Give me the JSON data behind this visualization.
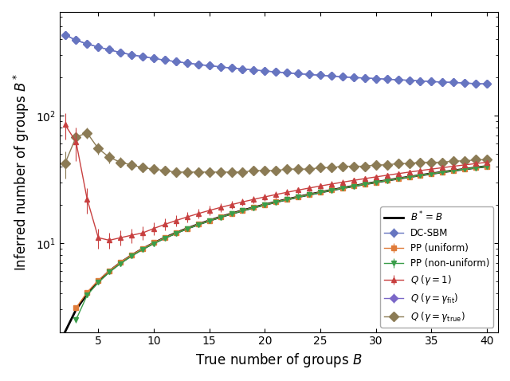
{
  "B_values": [
    2,
    3,
    4,
    5,
    6,
    7,
    8,
    9,
    10,
    11,
    12,
    13,
    14,
    15,
    16,
    17,
    18,
    19,
    20,
    21,
    22,
    23,
    24,
    25,
    26,
    27,
    28,
    29,
    30,
    31,
    32,
    33,
    34,
    35,
    36,
    37,
    38,
    39,
    40
  ],
  "dcsbm_y": [
    430,
    390,
    365,
    345,
    328,
    312,
    300,
    290,
    281,
    272,
    265,
    258,
    252,
    246,
    241,
    236,
    232,
    228,
    224,
    220,
    216,
    213,
    210,
    207,
    204,
    201,
    199,
    197,
    195,
    193,
    191,
    189,
    187,
    185,
    183,
    182,
    180,
    178,
    177
  ],
  "dcsbm_err": [
    12,
    11,
    10,
    9,
    8,
    8,
    7,
    7,
    6,
    6,
    6,
    6,
    5,
    5,
    5,
    5,
    5,
    5,
    5,
    5,
    5,
    4,
    4,
    4,
    4,
    4,
    4,
    4,
    4,
    4,
    4,
    4,
    4,
    4,
    4,
    4,
    4,
    4,
    4
  ],
  "q_gammafit_y": [
    430,
    390,
    365,
    345,
    328,
    312,
    300,
    290,
    281,
    272,
    265,
    258,
    252,
    246,
    241,
    236,
    232,
    228,
    224,
    220,
    216,
    213,
    210,
    207,
    204,
    201,
    199,
    197,
    195,
    193,
    191,
    189,
    187,
    185,
    183,
    182,
    180,
    178,
    177
  ],
  "q_gammafit_err": [
    12,
    11,
    10,
    9,
    8,
    8,
    7,
    7,
    6,
    6,
    6,
    6,
    5,
    5,
    5,
    5,
    5,
    5,
    5,
    5,
    5,
    4,
    4,
    4,
    4,
    4,
    4,
    4,
    4,
    4,
    4,
    4,
    4,
    4,
    4,
    4,
    4,
    4,
    4
  ],
  "B_pp": [
    3,
    4,
    5,
    6,
    7,
    8,
    9,
    10,
    11,
    12,
    13,
    14,
    15,
    16,
    17,
    18,
    19,
    20,
    21,
    22,
    23,
    24,
    25,
    26,
    27,
    28,
    29,
    30,
    31,
    32,
    33,
    34,
    35,
    36,
    37,
    38,
    39,
    40
  ],
  "pp_uniform_y": [
    3.1,
    4.1,
    5.1,
    6.05,
    7.05,
    8.05,
    9.05,
    10.05,
    11.0,
    12.0,
    13.0,
    14.0,
    15.0,
    16.0,
    17.0,
    18.0,
    19.0,
    20.0,
    21.0,
    22.0,
    23.0,
    24.0,
    25.0,
    26.0,
    27.0,
    28.0,
    29.0,
    30.0,
    31.0,
    32.0,
    33.0,
    34.0,
    35.0,
    36.0,
    37.0,
    38.0,
    39.0,
    40.0
  ],
  "pp_uniform_err": [
    0.15,
    0.12,
    0.1,
    0.1,
    0.1,
    0.1,
    0.1,
    0.1,
    0.1,
    0.1,
    0.1,
    0.1,
    0.1,
    0.1,
    0.1,
    0.1,
    0.1,
    0.1,
    0.1,
    0.1,
    0.1,
    0.1,
    0.1,
    0.1,
    0.1,
    0.1,
    0.1,
    0.1,
    0.1,
    0.1,
    0.1,
    0.1,
    0.1,
    0.1,
    0.1,
    0.1,
    0.1,
    0.1
  ],
  "pp_nonuniform_y": [
    2.5,
    3.9,
    4.9,
    5.9,
    6.9,
    7.9,
    8.9,
    9.9,
    10.9,
    11.9,
    12.9,
    13.9,
    14.9,
    15.9,
    16.9,
    17.9,
    18.9,
    19.9,
    20.9,
    21.9,
    22.9,
    23.9,
    24.9,
    25.9,
    26.9,
    27.9,
    28.9,
    29.9,
    30.9,
    31.9,
    32.9,
    33.9,
    34.9,
    35.9,
    36.9,
    37.9,
    38.9,
    39.9
  ],
  "pp_nonuniform_err": [
    0.15,
    0.12,
    0.1,
    0.1,
    0.1,
    0.1,
    0.1,
    0.1,
    0.1,
    0.1,
    0.1,
    0.1,
    0.1,
    0.1,
    0.1,
    0.1,
    0.1,
    0.1,
    0.1,
    0.1,
    0.1,
    0.1,
    0.1,
    0.1,
    0.1,
    0.1,
    0.1,
    0.1,
    0.1,
    0.1,
    0.1,
    0.1,
    0.1,
    0.1,
    0.1,
    0.1,
    0.1,
    0.1
  ],
  "B_q1": [
    2,
    3,
    4,
    5,
    6,
    7,
    8,
    9,
    10,
    11,
    12,
    13,
    14,
    15,
    16,
    17,
    18,
    19,
    20,
    21,
    22,
    23,
    24,
    25,
    26,
    27,
    28,
    29,
    30,
    31,
    32,
    33,
    34,
    35,
    36,
    37,
    38,
    39,
    40
  ],
  "q_gamma1_y": [
    85,
    62,
    22,
    11,
    10.5,
    11,
    11.5,
    12,
    13,
    14,
    15,
    16,
    17,
    18,
    19,
    20,
    21,
    22,
    23,
    24,
    25,
    26,
    27,
    28,
    29,
    30,
    31,
    32,
    33,
    34,
    35,
    36,
    37,
    38,
    39,
    40,
    41,
    42,
    43
  ],
  "q_gamma1_err": [
    20,
    18,
    5,
    2,
    1.5,
    1.5,
    1.5,
    1.5,
    1.5,
    1.5,
    1.5,
    1.5,
    1.5,
    1.5,
    1.5,
    1.5,
    1.5,
    1.5,
    1.5,
    1.5,
    1.5,
    1.5,
    1.5,
    1.5,
    1.5,
    1.5,
    1.5,
    1.5,
    1.5,
    1.5,
    1.5,
    1.5,
    1.5,
    1.5,
    1.5,
    1.5,
    1.5,
    1.5,
    1.5
  ],
  "q_gammatrue_y": [
    42,
    68,
    73,
    55,
    47,
    43,
    41,
    39,
    38,
    37,
    36,
    36,
    36,
    36,
    36,
    36,
    36,
    37,
    37,
    37,
    38,
    38,
    38,
    39,
    39,
    40,
    40,
    40,
    41,
    41,
    42,
    42,
    43,
    43,
    43,
    44,
    44,
    45,
    45
  ],
  "q_gammatrue_err": [
    10,
    9,
    7,
    6,
    5,
    4,
    3,
    3,
    3,
    3,
    3,
    3,
    3,
    3,
    3,
    3,
    3,
    3,
    3,
    3,
    3,
    3,
    3,
    3,
    3,
    3,
    3,
    3,
    3,
    3,
    3,
    3,
    3,
    3,
    3,
    3,
    3,
    3,
    3
  ],
  "identity_B": [
    2,
    3,
    4,
    5,
    6,
    7,
    8,
    9,
    10,
    11,
    12,
    13,
    14,
    15,
    16,
    17,
    18,
    19,
    20,
    21,
    22,
    23,
    24,
    25,
    26,
    27,
    28,
    29,
    30,
    31,
    32,
    33,
    34,
    35,
    36,
    37,
    38,
    39,
    40
  ],
  "color_dcsbm": "#6675c0",
  "color_pp_uniform": "#e07b39",
  "color_pp_nonuniform": "#3a9e4a",
  "color_q_gamma1": "#c84040",
  "color_q_gammafit": "#7b68c8",
  "color_q_gammatrue": "#8b7b55",
  "color_identity": "#000000",
  "xlabel": "True number of groups $B$",
  "ylabel": "Inferred number of groups $B^*$",
  "xlim": [
    1.5,
    41
  ],
  "ylim_log": [
    2.0,
    650
  ],
  "xticks": [
    5,
    10,
    15,
    20,
    25,
    30,
    35,
    40
  ]
}
